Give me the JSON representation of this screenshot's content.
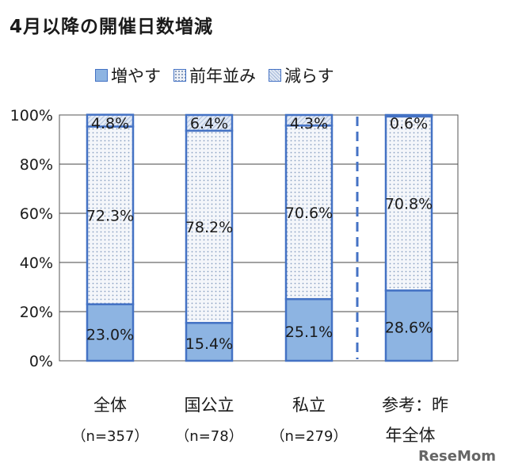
{
  "title": "4月以降の開催日数増減",
  "watermark": "ReseMom",
  "colors": {
    "increase": "#8db4e2",
    "same": "#e8ecf4",
    "decrease": "#dde6f2",
    "border": "#4472c4"
  },
  "chart_data": {
    "type": "bar",
    "stacked": true,
    "title": "4月以降の開催日数増減",
    "categories": [
      {
        "name": "全体",
        "sub": "（n=357）"
      },
      {
        "name": "国公立",
        "sub": "（n=78）"
      },
      {
        "name": "私立",
        "sub": "（n=279）"
      },
      {
        "name": "参考：昨",
        "sub": "年全体"
      }
    ],
    "series": [
      {
        "name": "増やす",
        "values": [
          23.0,
          15.4,
          25.1,
          28.6
        ],
        "labels": [
          "23.0%",
          "15.4%",
          "25.1%",
          "28.6%"
        ]
      },
      {
        "name": "前年並み",
        "values": [
          72.3,
          78.2,
          70.6,
          70.8
        ],
        "labels": [
          "72.3%",
          "78.2%",
          "70.6%",
          "70.8%"
        ]
      },
      {
        "name": "減らす",
        "values": [
          4.8,
          6.4,
          4.3,
          0.6
        ],
        "labels": [
          "4.8%",
          "6.4%",
          "4.3%",
          "0.6%"
        ]
      }
    ],
    "yticks": [
      "0%",
      "20%",
      "40%",
      "60%",
      "80%",
      "100%"
    ],
    "ylim": [
      0,
      100
    ],
    "grid": true,
    "legend": "top"
  }
}
